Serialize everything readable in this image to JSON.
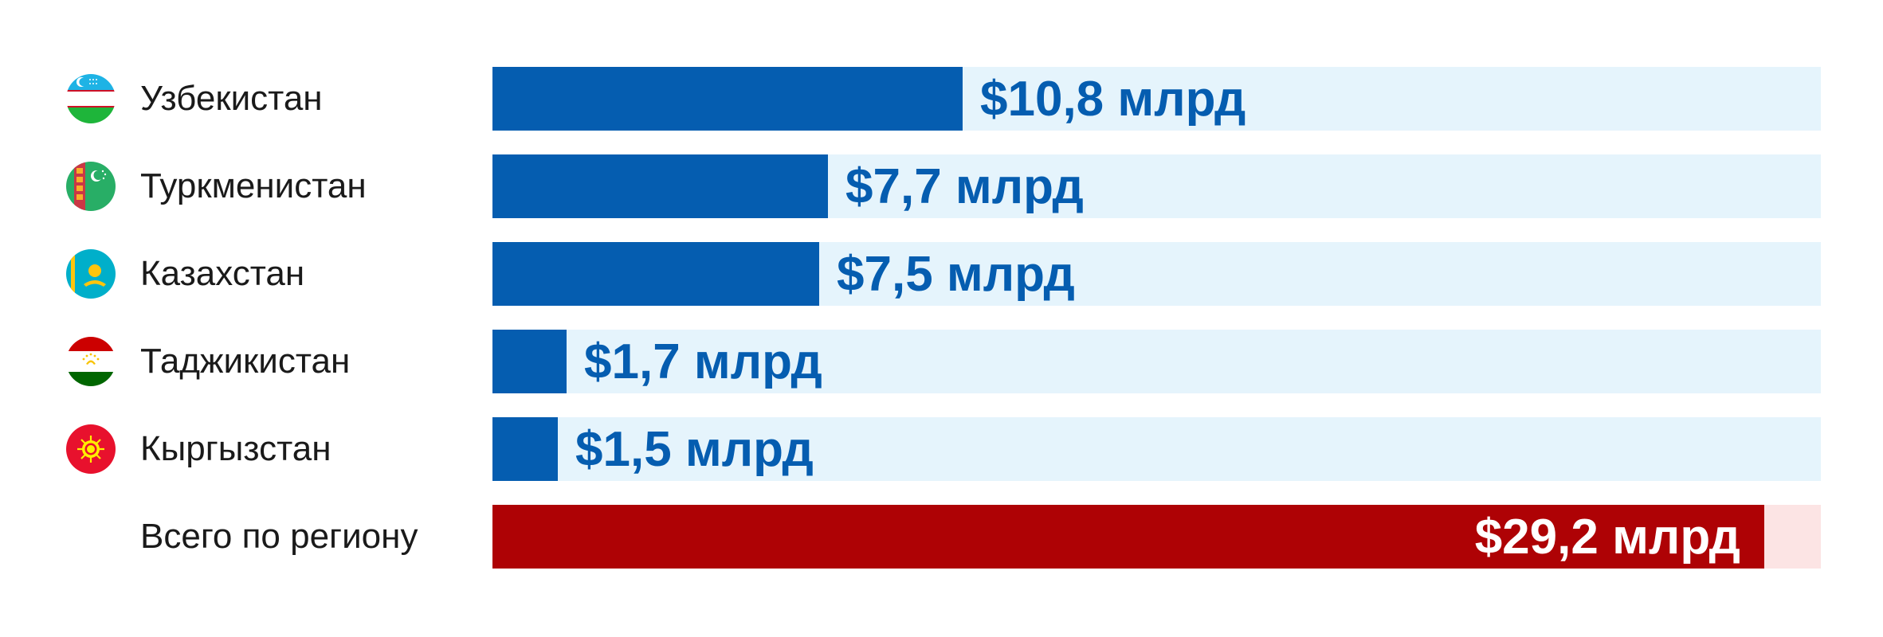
{
  "chart_data": {
    "type": "bar",
    "orientation": "horizontal",
    "categories": [
      "Узбекистан",
      "Туркменистан",
      "Казахстан",
      "Таджикистан",
      "Кыргызстан",
      "Всего по региону"
    ],
    "values": [
      10.8,
      7.7,
      7.5,
      1.7,
      1.5,
      29.2
    ],
    "value_labels": [
      "$10,8 млрд",
      "$7,7 млрд",
      "$7,5 млрд",
      "$1,7 млрд",
      "$1,5 млрд",
      "$29,2 млрд"
    ],
    "xlim": [
      0,
      30.5
    ],
    "grid": false,
    "colors": {
      "bar": "#055DB0",
      "track": "#E5F4FC",
      "total_bar": "#AE0205",
      "total_track": "#FCE4E4",
      "value_text": "#055DB0",
      "total_value_text": "#FFFFFF"
    }
  },
  "flags": [
    "uzbekistan-flag-icon",
    "turkmenistan-flag-icon",
    "kazakhstan-flag-icon",
    "tajikistan-flag-icon",
    "kyrgyzstan-flag-icon",
    ""
  ]
}
